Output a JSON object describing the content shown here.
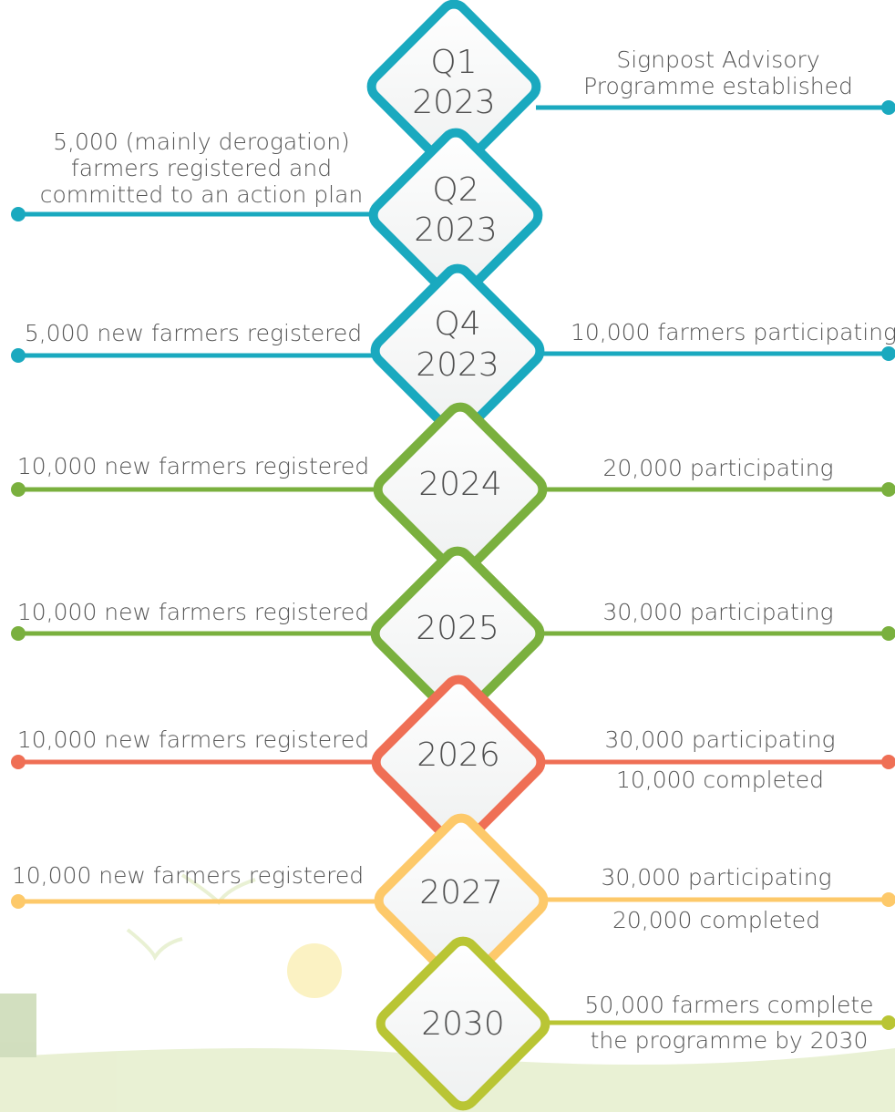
{
  "milestones": [
    {
      "label": [
        "Q1",
        "2023"
      ],
      "color": "#1aa9bf",
      "right": [
        "Signpost Advisory",
        "Programme established"
      ]
    },
    {
      "label": [
        "Q2",
        "2023"
      ],
      "color": "#1aa9bf",
      "left": [
        "5,000 (mainly derogation)",
        "farmers registered and",
        "committed to an action plan"
      ]
    },
    {
      "label": [
        "Q4",
        "2023"
      ],
      "color": "#1aa9bf",
      "left": [
        "5,000 new farmers registered"
      ],
      "right": [
        "10,000 farmers participating"
      ]
    },
    {
      "label": [
        "2024"
      ],
      "color": "#7ab03e",
      "left": [
        "10,000 new farmers registered"
      ],
      "right": [
        "20,000 participating"
      ]
    },
    {
      "label": [
        "2025"
      ],
      "color": "#7ab03e",
      "left": [
        "10,000 new farmers registered"
      ],
      "right": [
        "30,000 participating"
      ]
    },
    {
      "label": [
        "2026"
      ],
      "color": "#ef6f55",
      "left": [
        "10,000 new farmers registered"
      ],
      "right": [
        "30,000 participating",
        "10,000 completed"
      ]
    },
    {
      "label": [
        "2027"
      ],
      "color": "#fdc96a",
      "left": [
        "10,000 new farmers registered"
      ],
      "right": [
        "30,000 participating",
        "20,000 completed"
      ]
    },
    {
      "label": [
        "2030"
      ],
      "color": "#b9c534",
      "right": [
        "50,000 farmers complete",
        "the programme by 2030"
      ]
    }
  ]
}
